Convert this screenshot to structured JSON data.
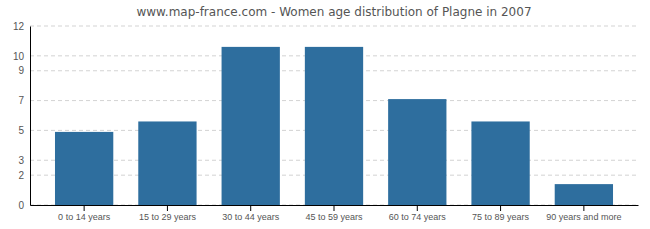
{
  "chart_data": {
    "type": "bar",
    "title": "www.map-france.com - Women age distribution of Plagne in 2007",
    "categories": [
      "0 to 14 years",
      "15 to 29 years",
      "30 to 44 years",
      "45 to 59 years",
      "60 to 74 years",
      "75 to 89 years",
      "90 years and more"
    ],
    "values": [
      4.9,
      5.6,
      10.6,
      10.6,
      7.1,
      5.6,
      1.4
    ],
    "color": "#2e6e9e",
    "ylim": [
      0,
      12
    ],
    "yticks": [
      0,
      2,
      3,
      5,
      7,
      9,
      10,
      12
    ],
    "grid": true
  }
}
